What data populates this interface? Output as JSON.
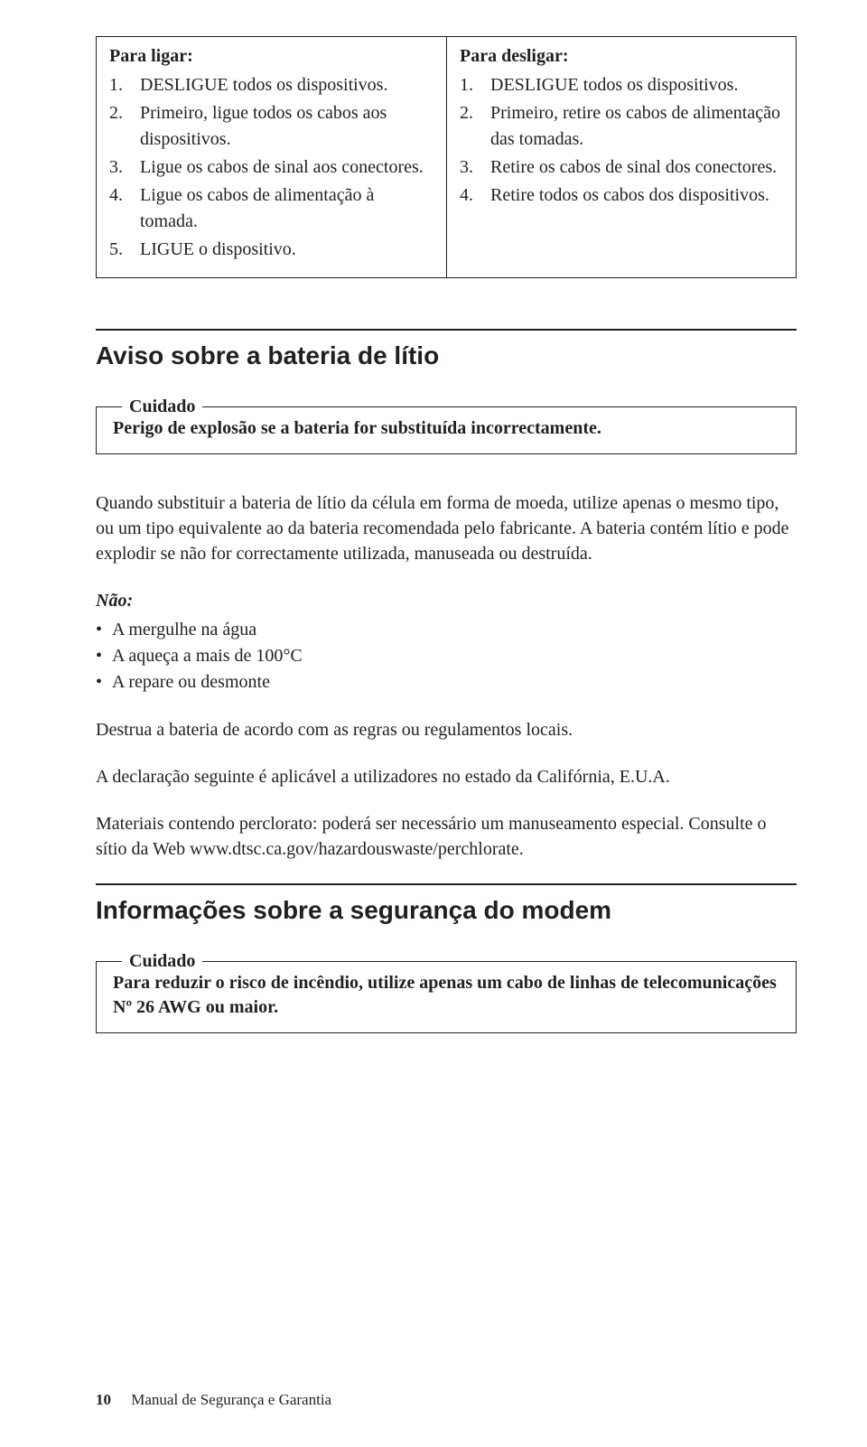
{
  "ligar": {
    "heading": "Para ligar:",
    "items": [
      "DESLIGUE todos os dispositivos.",
      "Primeiro, ligue todos os cabos aos dispositivos.",
      "Ligue os cabos de sinal aos conectores.",
      "Ligue os cabos de alimentação à tomada.",
      "LIGUE o dispositivo."
    ]
  },
  "desligar": {
    "heading": "Para desligar:",
    "items": [
      "DESLIGUE todos os dispositivos.",
      "Primeiro, retire os cabos de alimentação das tomadas.",
      "Retire os cabos de sinal dos conectores.",
      "Retire todos os cabos dos dispositivos."
    ]
  },
  "lithium": {
    "title": "Aviso sobre a bateria de lítio",
    "callout_legend": "Cuidado",
    "callout_text": "Perigo de explosão se a bateria for substituída incorrectamente.",
    "para1": "Quando substituir a bateria de lítio da célula em forma de moeda, utilize apenas o mesmo tipo, ou um tipo equivalente ao da bateria recomendada pelo fabricante. A bateria contém lítio e pode explodir se não for correctamente utilizada, manuseada ou destruída.",
    "nao_label": "Não:",
    "nao_items": [
      "A mergulhe na água",
      "A aqueça a mais de 100°C",
      "A repare ou desmonte"
    ],
    "para2": "Destrua a bateria de acordo com as regras ou regulamentos locais.",
    "para3": "A declaração seguinte é aplicável a utilizadores no estado da Califórnia, E.U.A.",
    "para4": "Materiais contendo perclorato: poderá ser necessário um manuseamento especial. Consulte o sítio da Web www.dtsc.ca.gov/hazardouswaste/perchlorate."
  },
  "modem": {
    "title": "Informações sobre a segurança do modem",
    "callout_legend": "Cuidado",
    "callout_text": "Para reduzir o risco de incêndio, utilize apenas um cabo de linhas de telecomunicações Nº 26 AWG ou maior."
  },
  "footer": {
    "page": "10",
    "doc": "Manual de Segurança e Garantia"
  }
}
